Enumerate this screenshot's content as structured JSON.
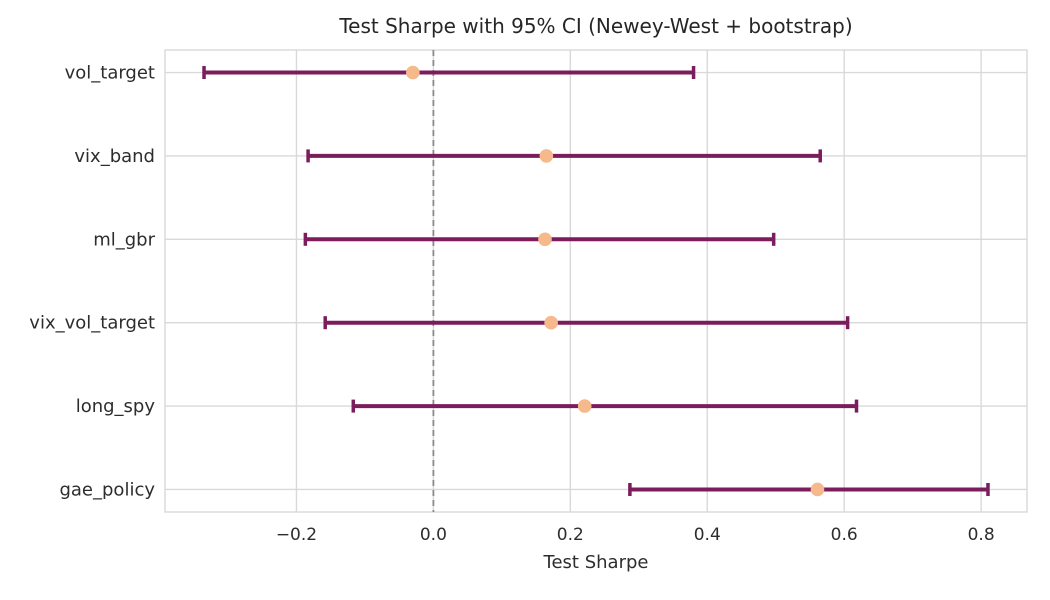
{
  "chart_data": {
    "type": "scatter",
    "variant": "horizontal-errorbar-forest-plot",
    "title": "Test Sharpe with 95% CI (Newey-West + bootstrap)",
    "xlabel": "Test Sharpe",
    "ylabel": "",
    "categories": [
      "vol_target",
      "vix_band",
      "ml_gbr",
      "vix_vol_target",
      "long_spy",
      "gae_policy"
    ],
    "points": [
      {
        "label": "vol_target",
        "mean": -0.03,
        "ci_low": -0.335,
        "ci_high": 0.38
      },
      {
        "label": "vix_band",
        "mean": 0.165,
        "ci_low": -0.183,
        "ci_high": 0.565
      },
      {
        "label": "ml_gbr",
        "mean": 0.163,
        "ci_low": -0.187,
        "ci_high": 0.497
      },
      {
        "label": "vix_vol_target",
        "mean": 0.172,
        "ci_low": -0.158,
        "ci_high": 0.605
      },
      {
        "label": "long_spy",
        "mean": 0.221,
        "ci_low": -0.117,
        "ci_high": 0.618
      },
      {
        "label": "gae_policy",
        "mean": 0.561,
        "ci_low": 0.287,
        "ci_high": 0.81
      }
    ],
    "xlim": [
      -0.392,
      0.867
    ],
    "x_ticks": [
      -0.2,
      0.0,
      0.2,
      0.4,
      0.6,
      0.8
    ],
    "x_tick_labels": [
      "−0.2",
      "0.0",
      "0.2",
      "0.4",
      "0.6",
      "0.8"
    ],
    "grid": true,
    "legend": "none",
    "zero_line": 0.0,
    "colors": {
      "ci_bar": "#7b1c5d",
      "marker": "#f6b98c",
      "zero_line": "#8a8a8a",
      "grid": "#d9d9d9",
      "border": "#d9d9d9",
      "title_text": "#262626",
      "tick_text": "#2d2d2d"
    }
  }
}
